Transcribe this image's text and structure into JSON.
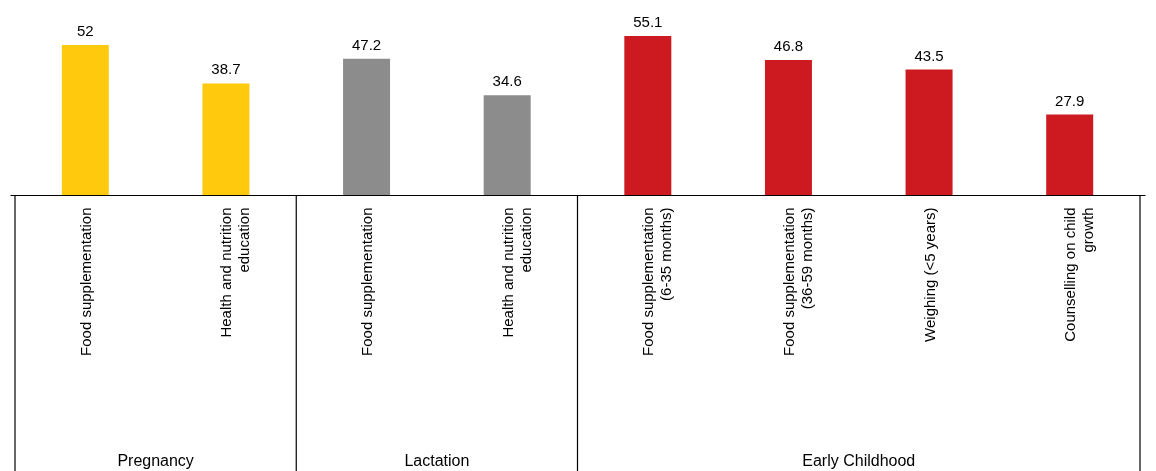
{
  "chart_data": {
    "type": "bar",
    "categories": [
      "Food supplementation",
      "Health and nutrition education",
      "Food supplementation",
      "Health and nutrition education",
      "Food supplementation (6-35 months)",
      "Food supplementation (36-59 months)",
      "Weighing (<5 years)",
      "Counselling on child growth"
    ],
    "values": [
      52,
      38.7,
      47.2,
      34.6,
      55.1,
      46.8,
      43.5,
      27.9
    ],
    "colors": [
      "#ffc90e",
      "#ffc90e",
      "#8c8c8c",
      "#8c8c8c",
      "#cc1a20",
      "#cc1a20",
      "#cc1a20",
      "#cc1a20"
    ],
    "annotations": [
      "Pregnancy",
      "Lactation",
      "Early Childhood"
    ],
    "data_labels": true
  }
}
